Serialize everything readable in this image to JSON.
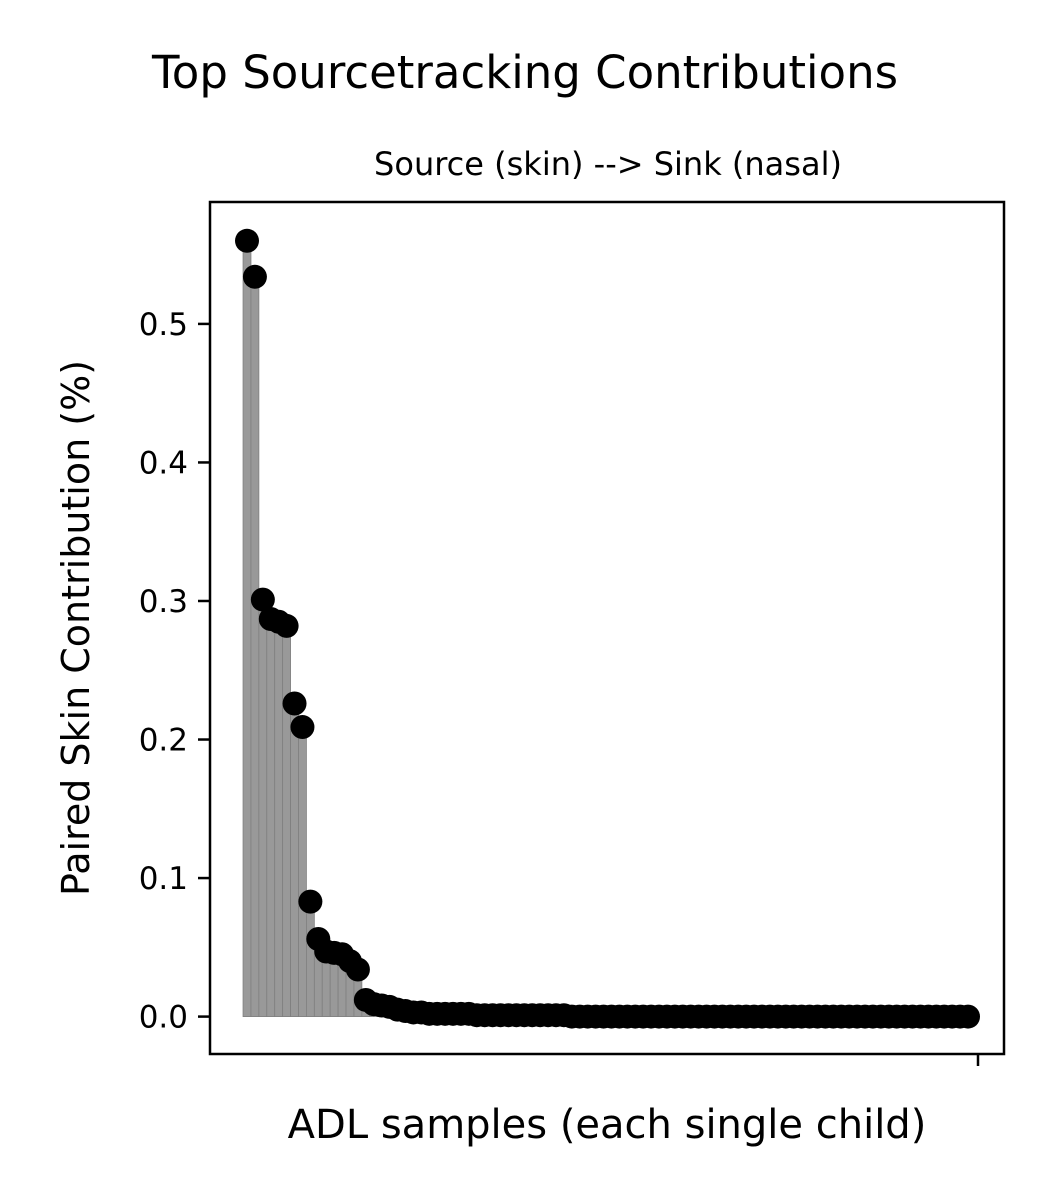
{
  "chart_data": {
    "type": "scatter",
    "title": "Top Sourcetracking Contributions",
    "subtitle": "Source (skin) --> Sink (nasal)",
    "xlabel": "ADL samples (each single child)",
    "ylabel": "Paired Skin Contribution (%)",
    "ylim": [
      -0.027,
      0.588
    ],
    "yticks": [
      0.0,
      0.1,
      0.2,
      0.3,
      0.4,
      0.5
    ],
    "ytick_labels": [
      "0.0",
      "0.1",
      "0.2",
      "0.3",
      "0.4",
      "0.5"
    ],
    "xticks_labels": [
      ""
    ],
    "grid": false,
    "legend": "none",
    "marker_color": "#000000",
    "stem_color": "#999999",
    "stems": true,
    "series": [
      {
        "values": [
          0.56,
          0.534,
          0.301,
          0.287,
          0.285,
          0.282,
          0.226,
          0.209,
          0.083,
          0.056,
          0.047,
          0.046,
          0.045,
          0.04,
          0.034,
          0.012,
          0.009,
          0.008,
          0.007,
          0.005,
          0.004,
          0.003,
          0.003,
          0.002,
          0.002,
          0.002,
          0.002,
          0.002,
          0.002,
          0.001,
          0.001,
          0.001,
          0.001,
          0.001,
          0.001,
          0.001,
          0.001,
          0.001,
          0.001,
          0.001,
          0.001,
          0.0,
          0.0,
          0.0,
          0.0,
          0.0,
          0.0,
          0.0,
          0.0,
          0.0,
          0.0,
          0.0,
          0.0,
          0.0,
          0.0,
          0.0,
          0.0,
          0.0,
          0.0,
          0.0,
          0.0,
          0.0,
          0.0,
          0.0,
          0.0,
          0.0,
          0.0,
          0.0,
          0.0,
          0.0,
          0.0,
          0.0,
          0.0,
          0.0,
          0.0,
          0.0,
          0.0,
          0.0,
          0.0,
          0.0,
          0.0,
          0.0,
          0.0,
          0.0,
          0.0,
          0.0,
          0.0,
          0.0,
          0.0,
          0.0,
          0.0,
          0.0
        ]
      }
    ]
  }
}
